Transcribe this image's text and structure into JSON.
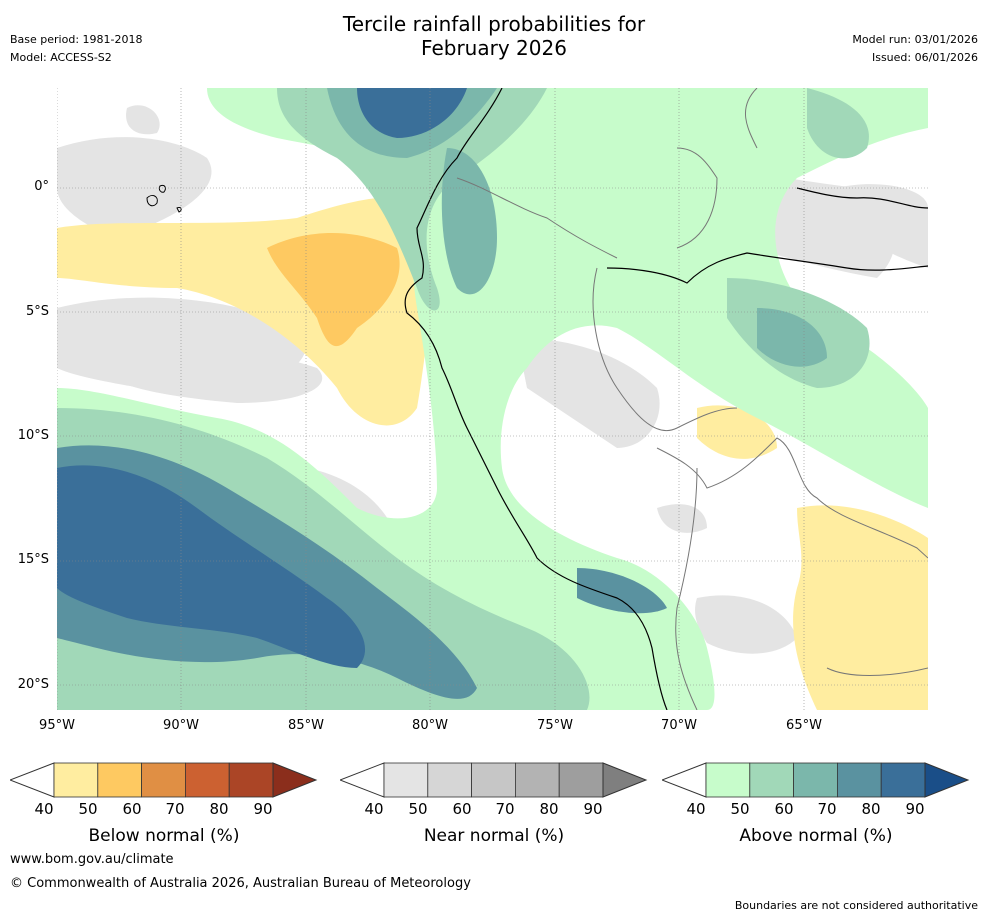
{
  "title_line1": "Tercile rainfall probabilities for",
  "title_line2": "February 2026",
  "base_period": "Base period: 1981-2018",
  "model": "Model: ACCESS-S2",
  "model_run": "Model run: 03/01/2026",
  "issued": "Issued: 06/01/2026",
  "lat_labels": [
    "0°",
    "5°S",
    "10°S",
    "15°S",
    "20°S"
  ],
  "lon_labels": [
    "95°W",
    "90°W",
    "85°W",
    "80°W",
    "75°W",
    "70°W",
    "65°W"
  ],
  "colorbars": [
    {
      "title": "Below normal (%)",
      "ticks": [
        "40",
        "50",
        "60",
        "70",
        "80",
        "90"
      ],
      "colors": [
        "#ffeda0",
        "#fec961",
        "#e08f44",
        "#cc6131",
        "#ab4526",
        "#8b2e1c"
      ]
    },
    {
      "title": "Near normal (%)",
      "ticks": [
        "40",
        "50",
        "60",
        "70",
        "80",
        "90"
      ],
      "colors": [
        "#e4e4e4",
        "#d6d6d6",
        "#c6c6c6",
        "#b3b3b3",
        "#9e9e9e",
        "#7f7f7f"
      ]
    },
    {
      "title": "Above normal (%)",
      "ticks": [
        "40",
        "50",
        "60",
        "70",
        "80",
        "90"
      ],
      "colors": [
        "#c7fccb",
        "#a1d8b8",
        "#7bb7ab",
        "#5a92a0",
        "#3a6f99",
        "#1a4e88"
      ]
    }
  ],
  "website": "www.bom.gov.au/climate",
  "copyright": "© Commonwealth of Australia 2026, Australian Bureau of Meteorology",
  "disclaimer": "Boundaries are not considered authoritative"
}
